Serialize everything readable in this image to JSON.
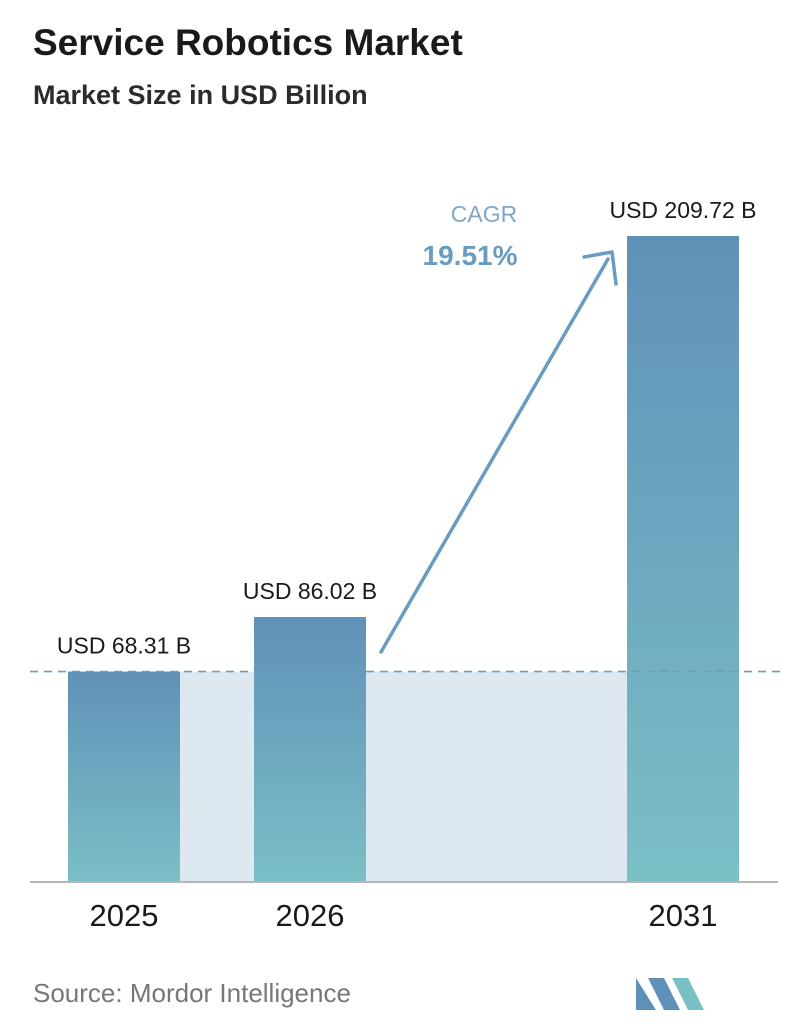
{
  "title": "Service Robotics Market",
  "subtitle": "Market Size in USD Billion",
  "source": "Source: Mordor Intelligence",
  "colors": {
    "bar_top": "#5f91b8",
    "bar_bottom": "#7bbfc6",
    "band": "#dde8f1",
    "arrow": "#6a9cc2",
    "cagr_label": "#7fa7c9",
    "cagr_value": "#6a9cc2",
    "baseline": "#b5b5b5",
    "logo_left": "#5f91b8",
    "logo_right": "#7bbfc6"
  },
  "chart_data": {
    "type": "bar",
    "categories": [
      "2025",
      "2026",
      "2031"
    ],
    "values": [
      68.31,
      86.02,
      209.72
    ],
    "value_labels": [
      "USD 68.31 B",
      "USD 86.02 B",
      "USD 209.72 B"
    ],
    "annotation": {
      "label": "CAGR",
      "value": "19.51%"
    },
    "reference_line": 68.31,
    "ylim": [
      0,
      209.72
    ]
  }
}
